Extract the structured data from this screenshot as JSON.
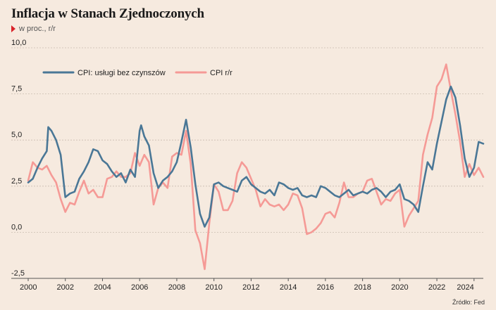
{
  "header": {
    "title": "Inflacja w Stanach Zjednoczonych",
    "subtitle": "w proc., r/r"
  },
  "footer": {
    "source": "Źródło: Fed"
  },
  "colors": {
    "background": "#f6eadf",
    "series1": "#4a7796",
    "series2": "#f59a96",
    "marker": "#d9232a",
    "grid": "#c9bcb0"
  },
  "chart_data": {
    "type": "line",
    "title": "Inflacja w Stanach Zjednoczonych",
    "subtitle": "w proc., r/r",
    "xlabel": "",
    "ylabel": "",
    "xlim": [
      2000,
      2024.5
    ],
    "ylim": [
      -2.5,
      10
    ],
    "yticks": [
      -2.5,
      0,
      2.5,
      5,
      7.5,
      10
    ],
    "ytick_labels": [
      "-2,5",
      "0,0",
      "2,5",
      "5,0",
      "7,5",
      "10,0"
    ],
    "xticks": [
      2000,
      2002,
      2004,
      2006,
      2008,
      2010,
      2012,
      2014,
      2016,
      2018,
      2020,
      2022,
      2024
    ],
    "xtick_labels": [
      "2000",
      "2002",
      "2004",
      "2006",
      "2008",
      "2010",
      "2012",
      "2014",
      "2016",
      "2018",
      "2020",
      "2022",
      "2024"
    ],
    "grid": "horizontal",
    "legend": "top-left",
    "series": [
      {
        "name": "CPI: usługi bez czynszów",
        "color": "#4a7796",
        "points": [
          [
            2000.0,
            2.7
          ],
          [
            2000.25,
            2.9
          ],
          [
            2000.5,
            3.5
          ],
          [
            2000.75,
            4.0
          ],
          [
            2001.0,
            4.4
          ],
          [
            2001.08,
            5.7
          ],
          [
            2001.25,
            5.5
          ],
          [
            2001.5,
            5.0
          ],
          [
            2001.75,
            4.2
          ],
          [
            2002.0,
            1.9
          ],
          [
            2002.25,
            2.1
          ],
          [
            2002.5,
            2.2
          ],
          [
            2002.75,
            2.9
          ],
          [
            2003.0,
            3.3
          ],
          [
            2003.25,
            3.8
          ],
          [
            2003.5,
            4.5
          ],
          [
            2003.75,
            4.4
          ],
          [
            2004.0,
            3.9
          ],
          [
            2004.25,
            3.7
          ],
          [
            2004.5,
            3.3
          ],
          [
            2004.75,
            3.0
          ],
          [
            2005.0,
            3.2
          ],
          [
            2005.25,
            2.7
          ],
          [
            2005.5,
            3.4
          ],
          [
            2005.75,
            3.0
          ],
          [
            2006.0,
            5.5
          ],
          [
            2006.08,
            5.8
          ],
          [
            2006.25,
            5.2
          ],
          [
            2006.5,
            4.7
          ],
          [
            2006.75,
            3.2
          ],
          [
            2007.0,
            2.4
          ],
          [
            2007.25,
            2.8
          ],
          [
            2007.5,
            3.0
          ],
          [
            2007.75,
            3.3
          ],
          [
            2008.0,
            3.8
          ],
          [
            2008.25,
            4.9
          ],
          [
            2008.5,
            6.1
          ],
          [
            2008.75,
            4.6
          ],
          [
            2009.0,
            2.6
          ],
          [
            2009.25,
            1.0
          ],
          [
            2009.5,
            0.3
          ],
          [
            2009.75,
            0.8
          ],
          [
            2010.0,
            2.6
          ],
          [
            2010.25,
            2.7
          ],
          [
            2010.5,
            2.5
          ],
          [
            2010.75,
            2.4
          ],
          [
            2011.0,
            2.3
          ],
          [
            2011.25,
            2.2
          ],
          [
            2011.5,
            2.8
          ],
          [
            2011.75,
            3.0
          ],
          [
            2012.0,
            2.6
          ],
          [
            2012.25,
            2.4
          ],
          [
            2012.5,
            2.2
          ],
          [
            2012.75,
            2.1
          ],
          [
            2013.0,
            2.3
          ],
          [
            2013.25,
            2.0
          ],
          [
            2013.5,
            2.7
          ],
          [
            2013.75,
            2.6
          ],
          [
            2014.0,
            2.4
          ],
          [
            2014.25,
            2.3
          ],
          [
            2014.5,
            2.4
          ],
          [
            2014.75,
            2.0
          ],
          [
            2015.0,
            1.9
          ],
          [
            2015.25,
            2.0
          ],
          [
            2015.5,
            1.9
          ],
          [
            2015.75,
            2.5
          ],
          [
            2016.0,
            2.4
          ],
          [
            2016.25,
            2.2
          ],
          [
            2016.5,
            2.0
          ],
          [
            2016.75,
            1.9
          ],
          [
            2017.0,
            2.1
          ],
          [
            2017.25,
            2.3
          ],
          [
            2017.5,
            2.0
          ],
          [
            2017.75,
            2.1
          ],
          [
            2018.0,
            2.2
          ],
          [
            2018.25,
            2.1
          ],
          [
            2018.5,
            2.3
          ],
          [
            2018.75,
            2.4
          ],
          [
            2019.0,
            2.2
          ],
          [
            2019.25,
            1.9
          ],
          [
            2019.5,
            2.2
          ],
          [
            2019.75,
            2.3
          ],
          [
            2020.0,
            2.6
          ],
          [
            2020.25,
            1.8
          ],
          [
            2020.5,
            1.7
          ],
          [
            2020.75,
            1.5
          ],
          [
            2021.0,
            1.1
          ],
          [
            2021.25,
            2.5
          ],
          [
            2021.5,
            3.8
          ],
          [
            2021.75,
            3.4
          ],
          [
            2022.0,
            4.8
          ],
          [
            2022.25,
            6.0
          ],
          [
            2022.5,
            7.2
          ],
          [
            2022.75,
            7.9
          ],
          [
            2023.0,
            7.3
          ],
          [
            2023.25,
            5.8
          ],
          [
            2023.5,
            4.0
          ],
          [
            2023.75,
            3.0
          ],
          [
            2024.0,
            3.5
          ],
          [
            2024.25,
            4.9
          ],
          [
            2024.5,
            4.8
          ]
        ]
      },
      {
        "name": "CPI r/r",
        "color": "#f59a96",
        "points": [
          [
            2000.0,
            2.8
          ],
          [
            2000.25,
            3.8
          ],
          [
            2000.5,
            3.5
          ],
          [
            2000.75,
            3.4
          ],
          [
            2001.0,
            3.6
          ],
          [
            2001.25,
            3.1
          ],
          [
            2001.5,
            2.7
          ],
          [
            2001.75,
            1.8
          ],
          [
            2002.0,
            1.1
          ],
          [
            2002.25,
            1.6
          ],
          [
            2002.5,
            1.5
          ],
          [
            2002.75,
            2.2
          ],
          [
            2003.0,
            2.8
          ],
          [
            2003.25,
            2.1
          ],
          [
            2003.5,
            2.3
          ],
          [
            2003.75,
            1.9
          ],
          [
            2004.0,
            1.9
          ],
          [
            2004.25,
            2.9
          ],
          [
            2004.5,
            3.0
          ],
          [
            2004.75,
            3.3
          ],
          [
            2005.0,
            3.0
          ],
          [
            2005.25,
            3.0
          ],
          [
            2005.5,
            3.2
          ],
          [
            2005.75,
            4.3
          ],
          [
            2006.0,
            3.6
          ],
          [
            2006.25,
            4.2
          ],
          [
            2006.5,
            3.8
          ],
          [
            2006.75,
            1.5
          ],
          [
            2007.0,
            2.4
          ],
          [
            2007.25,
            2.7
          ],
          [
            2007.5,
            2.4
          ],
          [
            2007.75,
            4.1
          ],
          [
            2008.0,
            4.3
          ],
          [
            2008.25,
            4.2
          ],
          [
            2008.5,
            5.5
          ],
          [
            2008.75,
            3.7
          ],
          [
            2009.0,
            0.1
          ],
          [
            2009.25,
            -0.6
          ],
          [
            2009.5,
            -2.0
          ],
          [
            2009.75,
            0.5
          ],
          [
            2010.0,
            2.6
          ],
          [
            2010.25,
            2.2
          ],
          [
            2010.5,
            1.2
          ],
          [
            2010.75,
            1.2
          ],
          [
            2011.0,
            1.7
          ],
          [
            2011.25,
            3.2
          ],
          [
            2011.5,
            3.8
          ],
          [
            2011.75,
            3.5
          ],
          [
            2012.0,
            2.9
          ],
          [
            2012.25,
            2.3
          ],
          [
            2012.5,
            1.4
          ],
          [
            2012.75,
            1.8
          ],
          [
            2013.0,
            1.5
          ],
          [
            2013.25,
            1.4
          ],
          [
            2013.5,
            1.5
          ],
          [
            2013.75,
            1.2
          ],
          [
            2014.0,
            1.5
          ],
          [
            2014.25,
            2.1
          ],
          [
            2014.5,
            2.0
          ],
          [
            2014.75,
            1.3
          ],
          [
            2015.0,
            -0.1
          ],
          [
            2015.25,
            0.0
          ],
          [
            2015.5,
            0.2
          ],
          [
            2015.75,
            0.5
          ],
          [
            2016.0,
            1.0
          ],
          [
            2016.25,
            1.1
          ],
          [
            2016.5,
            0.8
          ],
          [
            2016.75,
            1.6
          ],
          [
            2017.0,
            2.7
          ],
          [
            2017.25,
            1.9
          ],
          [
            2017.5,
            1.9
          ],
          [
            2017.75,
            2.1
          ],
          [
            2018.0,
            2.2
          ],
          [
            2018.25,
            2.8
          ],
          [
            2018.5,
            2.9
          ],
          [
            2018.75,
            2.2
          ],
          [
            2019.0,
            1.5
          ],
          [
            2019.25,
            1.8
          ],
          [
            2019.5,
            1.7
          ],
          [
            2019.75,
            2.1
          ],
          [
            2020.0,
            2.3
          ],
          [
            2020.25,
            0.3
          ],
          [
            2020.5,
            0.9
          ],
          [
            2020.75,
            1.3
          ],
          [
            2021.0,
            1.7
          ],
          [
            2021.25,
            4.2
          ],
          [
            2021.5,
            5.3
          ],
          [
            2021.75,
            6.2
          ],
          [
            2022.0,
            7.9
          ],
          [
            2022.25,
            8.3
          ],
          [
            2022.5,
            9.1
          ],
          [
            2022.75,
            7.7
          ],
          [
            2023.0,
            6.4
          ],
          [
            2023.25,
            4.9
          ],
          [
            2023.5,
            3.0
          ],
          [
            2023.75,
            3.7
          ],
          [
            2024.0,
            3.1
          ],
          [
            2024.25,
            3.5
          ],
          [
            2024.5,
            3.0
          ]
        ]
      }
    ]
  }
}
